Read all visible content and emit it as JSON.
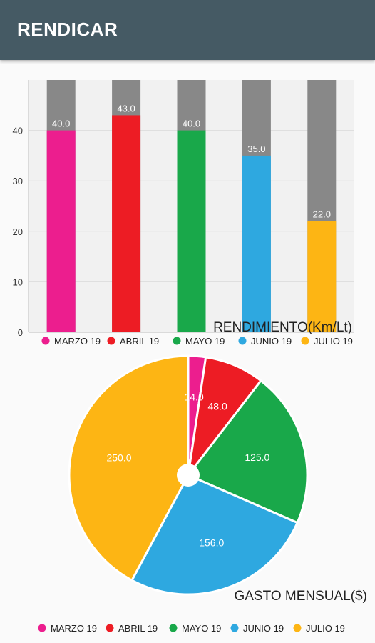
{
  "app": {
    "title": "RENDICAR"
  },
  "chart_data": [
    {
      "type": "bar",
      "title": "RENDIMIENTO(Km/Lt)",
      "categories": [
        "MARZO 19",
        "ABRIL 19",
        "MAYO 19",
        "JUNIO 19",
        "JULIO 19"
      ],
      "values": [
        40.0,
        43.0,
        40.0,
        35.0,
        22.0
      ],
      "colors": [
        "#ec1e8e",
        "#ed1c24",
        "#19a84a",
        "#2ea8e0",
        "#fdb514"
      ],
      "background_color": "#888888",
      "ylim": [
        0,
        50
      ],
      "yticks": [
        0,
        10,
        20,
        30,
        40
      ],
      "grid": true,
      "legend": "bottom"
    },
    {
      "type": "pie",
      "title": "GASTO MENSUAL($)",
      "categories": [
        "MARZO 19",
        "ABRIL 19",
        "MAYO 19",
        "JUNIO 19",
        "JULIO 19"
      ],
      "values": [
        14.0,
        48.0,
        125.0,
        156.0,
        250.0
      ],
      "colors": [
        "#ec1e8e",
        "#ed1c24",
        "#19a84a",
        "#2ea8e0",
        "#fdb514"
      ],
      "legend": "bottom"
    }
  ]
}
